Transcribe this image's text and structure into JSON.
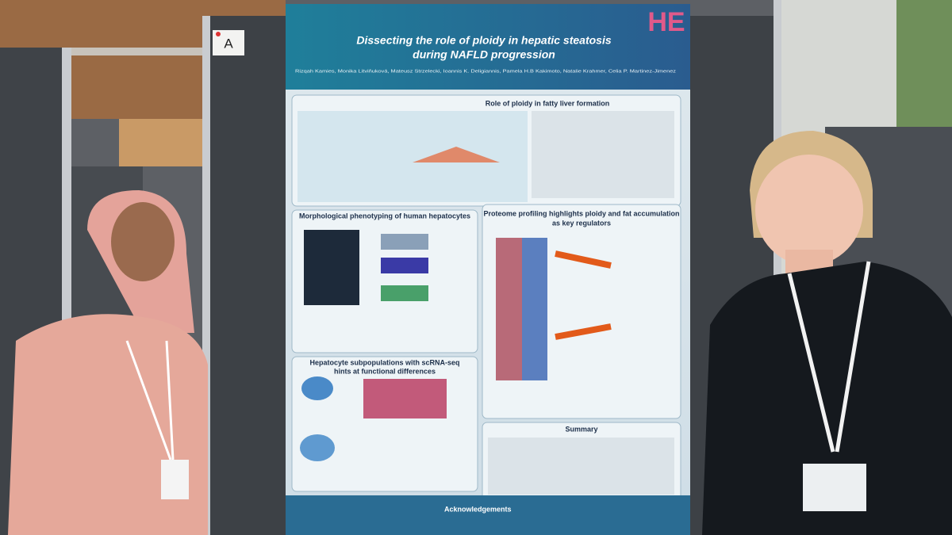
{
  "board_label": "A",
  "poster": {
    "logo": "HE",
    "title_lines": [
      "Dissecting the role of ploidy in hepatic steatosis",
      "during NAFLD progression"
    ],
    "authors": "Rizqah Kamies, Monika Litviňuková, Mateusz Strzelecki, Ioannis K. Deligiannis, Pamela H.B Kakimoto, Natalie Krahmer, Celia P. Martinez-Jimenez",
    "sections": {
      "role": [
        "Role of ploidy in fatty liver formation"
      ],
      "morphology": [
        "Morphological phenotyping of human hepatocytes"
      ],
      "proteome": [
        "Proteome profiling highlights ploidy and fat accumulation",
        "as key regulators"
      ],
      "subpopulations": [
        "Hepatocyte subpopulations with scRNA-seq",
        "hints at functional differences"
      ],
      "summary": [
        "Summary"
      ],
      "acknowledgements": [
        "Acknowledgements"
      ]
    }
  }
}
